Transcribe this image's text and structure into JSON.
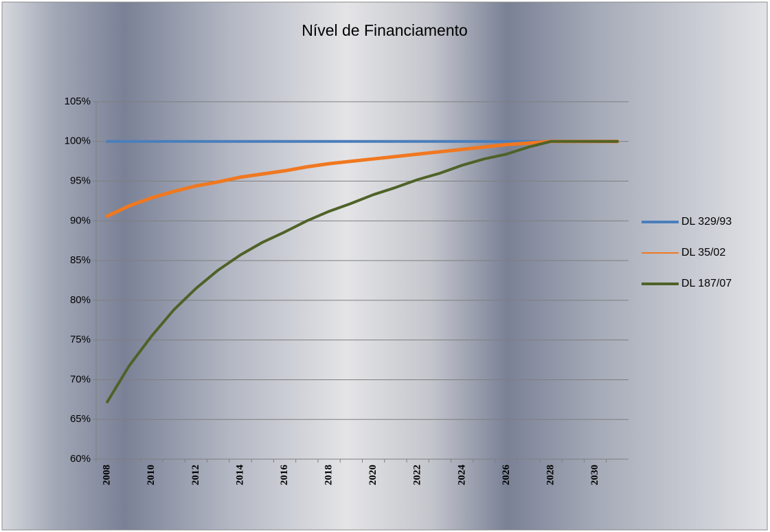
{
  "chart_data": {
    "type": "line",
    "title": "Nível de Financiamento",
    "categories": [
      "2008",
      null,
      "2010",
      null,
      "2012",
      null,
      "2014",
      null,
      "2016",
      null,
      "2018",
      null,
      "2020",
      null,
      "2022",
      null,
      "2024",
      null,
      "2026",
      null,
      "2028",
      null,
      "2030",
      null
    ],
    "series": [
      {
        "name": "DL 329/93",
        "color": "#4a7ebb",
        "values": [
          100,
          100,
          100,
          100,
          100,
          100,
          100,
          100,
          100,
          100,
          100,
          100,
          100,
          100,
          100,
          100,
          100,
          100,
          100,
          100,
          100,
          100,
          100,
          100
        ]
      },
      {
        "name": "DL 35/02",
        "color": "#f07820",
        "values": [
          90.6,
          91.9,
          92.9,
          93.7,
          94.4,
          94.9,
          95.5,
          95.9,
          96.3,
          96.8,
          97.2,
          97.5,
          97.8,
          98.1,
          98.4,
          98.7,
          99.0,
          99.3,
          99.6,
          99.8,
          100,
          100,
          100,
          100
        ]
      },
      {
        "name": "DL 187/07",
        "color": "#4f6228",
        "values": [
          67.2,
          71.8,
          75.5,
          78.8,
          81.5,
          83.8,
          85.7,
          87.3,
          88.6,
          90.0,
          91.2,
          92.2,
          93.3,
          94.2,
          95.2,
          96.0,
          97.0,
          97.8,
          98.4,
          99.3,
          100,
          100,
          100,
          100
        ]
      }
    ],
    "ylim": [
      60,
      105
    ],
    "yticks": [
      {
        "value": 60,
        "label": "60%"
      },
      {
        "value": 65,
        "label": "65%"
      },
      {
        "value": 70,
        "label": "70%"
      },
      {
        "value": 75,
        "label": "75%"
      },
      {
        "value": 80,
        "label": "80%"
      },
      {
        "value": 85,
        "label": "85%"
      },
      {
        "value": 90,
        "label": "90%"
      },
      {
        "value": 95,
        "label": "95%"
      },
      {
        "value": 100,
        "label": "100%"
      },
      {
        "value": 105,
        "label": "105%"
      }
    ],
    "grid": true,
    "legend": "right"
  }
}
